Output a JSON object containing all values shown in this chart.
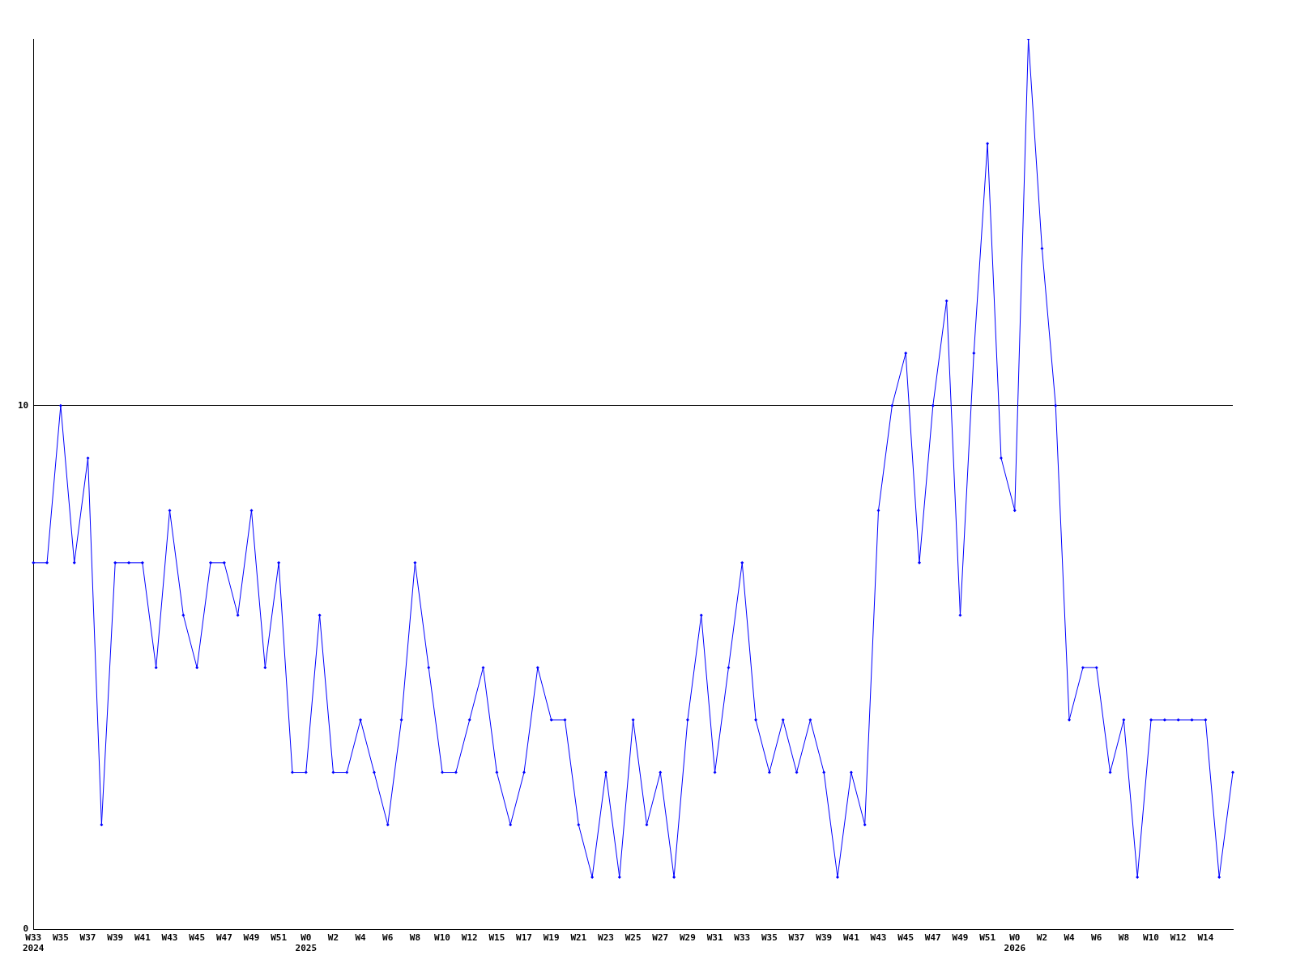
{
  "chart_data": {
    "type": "line",
    "categories": [
      "W33\n2024",
      null,
      "W35",
      null,
      "W37",
      null,
      "W39",
      null,
      "W41",
      null,
      "W43",
      null,
      "W45",
      null,
      "W47",
      null,
      "W49",
      null,
      "W51",
      null,
      "W0\n2025",
      null,
      "W2",
      null,
      "W4",
      null,
      "W6",
      null,
      "W8",
      null,
      "W10",
      null,
      "W12",
      null,
      "W15",
      null,
      "W17",
      null,
      "W19",
      null,
      "W21",
      null,
      "W23",
      null,
      "W25",
      null,
      "W27",
      null,
      "W29",
      null,
      "W31",
      null,
      "W33",
      null,
      "W35",
      null,
      "W37",
      null,
      "W39",
      null,
      "W41",
      null,
      "W43",
      null,
      "W45",
      null,
      "W47",
      null,
      "W49",
      null,
      "W51",
      null,
      "W0\n2026",
      null,
      "W2",
      null,
      "W4",
      null,
      "W6",
      null,
      "W8",
      null,
      "W10",
      null,
      "W12",
      null,
      "W14",
      null,
      null
    ],
    "series": [
      {
        "color": "#0000ff",
        "values": [
          7,
          7,
          10,
          7,
          9,
          2,
          7,
          7,
          7,
          5,
          8,
          6,
          5,
          7,
          7,
          6,
          8,
          5,
          7,
          3,
          3,
          6,
          3,
          3,
          4,
          3,
          2,
          4,
          7,
          5,
          3,
          3,
          4,
          5,
          3,
          2,
          3,
          5,
          4,
          4,
          2,
          1,
          3,
          1,
          4,
          2,
          3,
          1,
          4,
          6,
          3,
          5,
          7,
          4,
          3,
          4,
          3,
          4,
          3,
          1,
          3,
          2,
          8,
          10,
          11,
          7,
          10,
          12,
          6,
          11,
          15,
          9,
          8,
          17,
          13,
          10,
          4,
          5,
          5,
          3,
          4,
          1,
          4,
          4,
          4,
          4,
          4,
          1,
          3
        ]
      }
    ],
    "ylim": [
      0,
      17
    ],
    "yticks": [
      0,
      10
    ],
    "grid": "y",
    "marker": "diamond",
    "line_style": "solid"
  }
}
